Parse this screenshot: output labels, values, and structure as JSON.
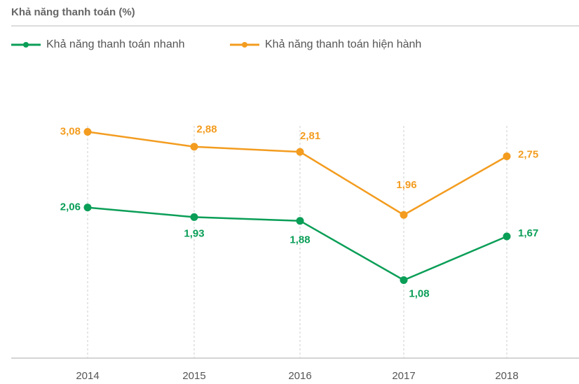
{
  "chart_data": {
    "type": "line",
    "title": "Khả năng thanh toán (%)",
    "categories": [
      "2014",
      "2015",
      "2016",
      "2017",
      "2018"
    ],
    "series": [
      {
        "name": "Khả năng thanh toán nhanh",
        "color": "#0a9e57",
        "values": [
          2.06,
          1.93,
          1.88,
          1.08,
          1.67
        ],
        "value_labels": [
          "2,06",
          "1,93",
          "1,88",
          "1,08",
          "1,67"
        ]
      },
      {
        "name": "Khả năng thanh toán hiện hành",
        "color": "#f39c1f",
        "values": [
          3.08,
          2.88,
          2.81,
          1.96,
          2.75
        ],
        "value_labels": [
          "3,08",
          "2,88",
          "2,81",
          "1,96",
          "2,75"
        ]
      }
    ],
    "ylim": [
      0,
      4
    ],
    "legend": "top-left"
  }
}
